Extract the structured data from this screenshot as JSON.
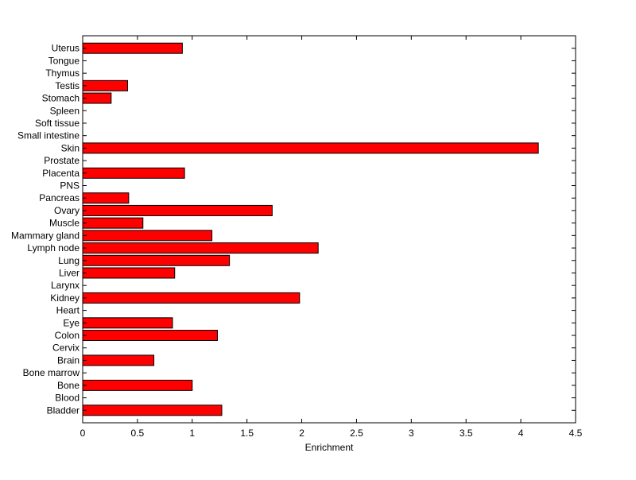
{
  "chart_data": {
    "type": "bar",
    "orientation": "horizontal",
    "title": "",
    "xlabel": "Enrichment",
    "ylabel": "",
    "xlim": [
      0,
      4.5
    ],
    "xticks": [
      "0",
      "0.5",
      "1",
      "1.5",
      "2",
      "2.5",
      "3",
      "3.5",
      "4",
      "4.5"
    ],
    "grid": false,
    "bar_color": "#ff0000",
    "edge_color": "#000000",
    "categories": [
      "Bladder",
      "Blood",
      "Bone",
      "Bone marrow",
      "Brain",
      "Cervix",
      "Colon",
      "Eye",
      "Heart",
      "Kidney",
      "Larynx",
      "Liver",
      "Lung",
      "Lymph node",
      "Mammary gland",
      "Muscle",
      "Ovary",
      "Pancreas",
      "PNS",
      "Placenta",
      "Prostate",
      "Skin",
      "Small intestine",
      "Soft tissue",
      "Spleen",
      "Stomach",
      "Testis",
      "Thymus",
      "Tongue",
      "Uterus"
    ],
    "values": [
      1.27,
      0,
      1.0,
      0,
      0.65,
      0,
      1.23,
      0.82,
      0,
      1.98,
      0,
      0.84,
      1.34,
      2.15,
      1.18,
      0.55,
      1.73,
      0.42,
      0,
      0.93,
      0,
      4.16,
      0,
      0,
      0,
      0.26,
      0.41,
      0,
      0,
      0.91
    ]
  }
}
